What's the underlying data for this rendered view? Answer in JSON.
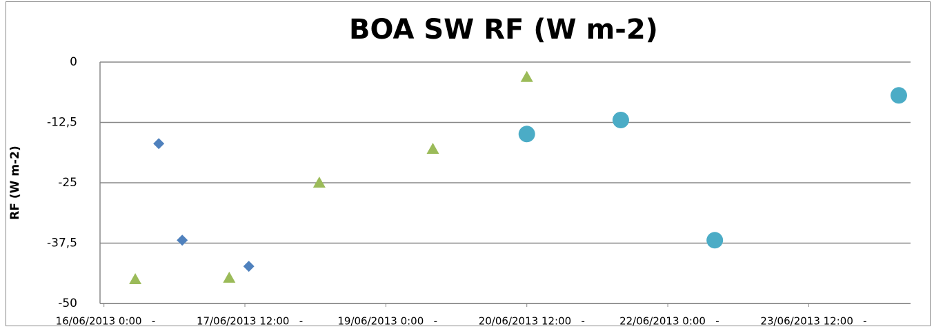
{
  "chart_data": {
    "type": "scatter",
    "title": "BOA SW RF (W m-2)",
    "y_label": "RF (W m-2)",
    "xlim": [
      "2013-06-15T23:00",
      "2013-06-24T14:00"
    ],
    "ylim": [
      -50,
      0
    ],
    "xticks": [
      {
        "value": "2013-06-16T00:00",
        "label": "16/06/2013 0:00   -"
      },
      {
        "value": "2013-06-17T12:00",
        "label": "17/06/2013 12:00   -"
      },
      {
        "value": "2013-06-19T00:00",
        "label": "19/06/2013 0:00   -"
      },
      {
        "value": "2013-06-20T12:00",
        "label": "20/06/2013 12:00   -"
      },
      {
        "value": "2013-06-22T00:00",
        "label": "22/06/2013 0:00   -"
      },
      {
        "value": "2013-06-23T12:00",
        "label": "23/06/2013 12:00   -"
      }
    ],
    "yticks": [
      0,
      {
        "value": -12.5,
        "label": "-12,5"
      },
      -25,
      {
        "value": -37.5,
        "label": "-37,5"
      },
      -50
    ],
    "grid": true,
    "series": [
      {
        "color": "#4f81bd",
        "marker": "diamond",
        "x": [
          "2013-06-16T14:00",
          "2013-06-16T20:00",
          "2013-06-17T13:00"
        ],
        "values": [
          -16.9,
          -36.9,
          -42.3
        ]
      },
      {
        "color": "#9bbb59",
        "marker": "triangle",
        "x": [
          "2013-06-16T08:00",
          "2013-06-17T08:00",
          "2013-06-18T07:00",
          "2013-06-19T12:00",
          "2013-06-20T12:00"
        ],
        "values": [
          -45,
          -44.7,
          -25,
          -18,
          -3.1
        ]
      },
      {
        "color": "#4bacc6",
        "marker": "circle",
        "x": [
          "2013-06-20T12:00",
          "2013-06-21T12:00",
          "2013-06-22T12:00",
          "2013-06-24T11:00"
        ],
        "values": [
          -14.9,
          -12,
          -36.9,
          -6.9
        ]
      }
    ]
  }
}
